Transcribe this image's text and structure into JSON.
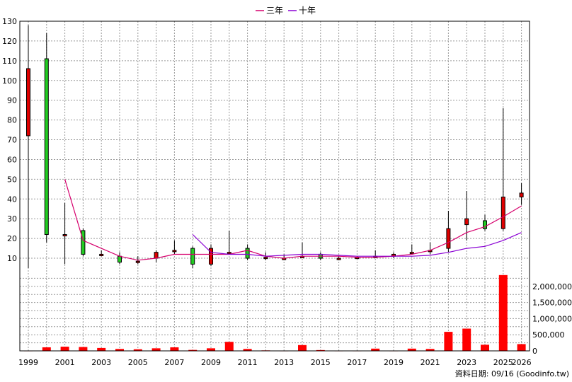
{
  "chart_data": {
    "type": "candlestick",
    "legend": {
      "position": "top-center",
      "entries": [
        {
          "name": "三年",
          "color": "#d6006d"
        },
        {
          "name": "十年",
          "color": "#8a00d4"
        }
      ]
    },
    "colors": {
      "up_candle": "#e00000",
      "down_candle": "#22cc22",
      "volume_bar": "#ff0000",
      "ma3": "#d6006d",
      "ma10": "#8a00d4"
    },
    "grid": true,
    "price_axis": {
      "position": "left",
      "ylim": [
        5,
        130
      ],
      "ticks": [
        10,
        20,
        30,
        40,
        50,
        60,
        70,
        80,
        90,
        100,
        110,
        120,
        130
      ]
    },
    "volume_axis": {
      "position": "right",
      "ylim": [
        0,
        2500000
      ],
      "ticks": [
        0,
        500000,
        1000000,
        1500000,
        2000000
      ],
      "tick_labels": [
        "0",
        "500,000",
        "1,000,000",
        "1,500,000",
        "2,000,000"
      ]
    },
    "x_tick_labels": [
      "1999",
      "2001",
      "2003",
      "2005",
      "2007",
      "2009",
      "2011",
      "2013",
      "2015",
      "2017",
      "2019",
      "2021",
      "2023",
      "2025",
      "2026"
    ],
    "candles": [
      {
        "year": 1999,
        "open": 72,
        "close": 106,
        "high": 128,
        "low": 5
      },
      {
        "year": 2000,
        "open": 111,
        "close": 22,
        "high": 124,
        "low": 18
      },
      {
        "year": 2001,
        "open": 22,
        "close": 22,
        "high": 38,
        "low": 7
      },
      {
        "year": 2002,
        "open": 24,
        "close": 12,
        "high": 25,
        "low": 11
      },
      {
        "year": 2003,
        "open": 12,
        "close": 12,
        "high": 14,
        "low": 11
      },
      {
        "year": 2004,
        "open": 11,
        "close": 8,
        "high": 13,
        "low": 7
      },
      {
        "year": 2005,
        "open": 8.5,
        "close": 8.5,
        "high": 11,
        "low": 7
      },
      {
        "year": 2006,
        "open": 10,
        "close": 13,
        "high": 14,
        "low": 8
      },
      {
        "year": 2007,
        "open": 14,
        "close": 14,
        "high": 19,
        "low": 12
      },
      {
        "year": 2008,
        "open": 15,
        "close": 7,
        "high": 16,
        "low": 5
      },
      {
        "year": 2009,
        "open": 7,
        "close": 15,
        "high": 17,
        "low": 6
      },
      {
        "year": 2010,
        "open": 13,
        "close": 13,
        "high": 24,
        "low": 12
      },
      {
        "year": 2011,
        "open": 15,
        "close": 10,
        "high": 17,
        "low": 9
      },
      {
        "year": 2012,
        "open": 10.5,
        "close": 10.5,
        "high": 13,
        "low": 9
      },
      {
        "year": 2013,
        "open": 10,
        "close": 10,
        "high": 12,
        "low": 9
      },
      {
        "year": 2014,
        "open": 11,
        "close": 11,
        "high": 18,
        "low": 10
      },
      {
        "year": 2015,
        "open": 12,
        "close": 10,
        "high": 13,
        "low": 9
      },
      {
        "year": 2016,
        "open": 10,
        "close": 10,
        "high": 11,
        "low": 9
      },
      {
        "year": 2017,
        "open": 10.5,
        "close": 10.5,
        "high": 11,
        "low": 10
      },
      {
        "year": 2018,
        "open": 11,
        "close": 11,
        "high": 14,
        "low": 10
      },
      {
        "year": 2019,
        "open": 11,
        "close": 12,
        "high": 13,
        "low": 10
      },
      {
        "year": 2020,
        "open": 13,
        "close": 13,
        "high": 17,
        "low": 12
      },
      {
        "year": 2021,
        "open": 14,
        "close": 14,
        "high": 18,
        "low": 12
      },
      {
        "year": 2022,
        "open": 15,
        "close": 25,
        "high": 34,
        "low": 13
      },
      {
        "year": 2023,
        "open": 27,
        "close": 30,
        "high": 44,
        "low": 19
      },
      {
        "year": 2024,
        "open": 29,
        "close": 25,
        "high": 32,
        "low": 24
      },
      {
        "year": 2025,
        "open": 25,
        "close": 41,
        "high": 86,
        "low": 24
      },
      {
        "year": 2026,
        "open": 41,
        "close": 43,
        "high": 48,
        "low": 37
      }
    ],
    "volume": [
      {
        "year": 1999,
        "value": 10000
      },
      {
        "year": 2000,
        "value": 110000
      },
      {
        "year": 2001,
        "value": 130000
      },
      {
        "year": 2002,
        "value": 120000
      },
      {
        "year": 2003,
        "value": 90000
      },
      {
        "year": 2004,
        "value": 60000
      },
      {
        "year": 2005,
        "value": 50000
      },
      {
        "year": 2006,
        "value": 80000
      },
      {
        "year": 2007,
        "value": 110000
      },
      {
        "year": 2008,
        "value": 30000
      },
      {
        "year": 2009,
        "value": 80000
      },
      {
        "year": 2010,
        "value": 280000
      },
      {
        "year": 2011,
        "value": 60000
      },
      {
        "year": 2012,
        "value": 15000
      },
      {
        "year": 2013,
        "value": 10000
      },
      {
        "year": 2014,
        "value": 180000
      },
      {
        "year": 2015,
        "value": 25000
      },
      {
        "year": 2016,
        "value": 10000
      },
      {
        "year": 2017,
        "value": 10000
      },
      {
        "year": 2018,
        "value": 70000
      },
      {
        "year": 2019,
        "value": 10000
      },
      {
        "year": 2020,
        "value": 70000
      },
      {
        "year": 2021,
        "value": 60000
      },
      {
        "year": 2022,
        "value": 590000
      },
      {
        "year": 2023,
        "value": 690000
      },
      {
        "year": 2024,
        "value": 190000
      },
      {
        "year": 2025,
        "value": 2350000
      },
      {
        "year": 2026,
        "value": 210000
      }
    ],
    "series": [
      {
        "name": "三年",
        "points": [
          [
            2001,
            50
          ],
          [
            2002,
            19
          ],
          [
            2003,
            15
          ],
          [
            2004,
            11
          ],
          [
            2005,
            9
          ],
          [
            2006,
            10
          ],
          [
            2007,
            12
          ],
          [
            2008,
            12
          ],
          [
            2009,
            12
          ],
          [
            2010,
            12
          ],
          [
            2011,
            14
          ],
          [
            2012,
            11
          ],
          [
            2013,
            10
          ],
          [
            2014,
            11
          ],
          [
            2015,
            11
          ],
          [
            2016,
            11
          ],
          [
            2017,
            10.5
          ],
          [
            2018,
            10.5
          ],
          [
            2019,
            11
          ],
          [
            2020,
            12
          ],
          [
            2021,
            14
          ],
          [
            2022,
            18
          ],
          [
            2023,
            23
          ],
          [
            2024,
            26
          ],
          [
            2025,
            31
          ],
          [
            2026,
            36.5
          ]
        ]
      },
      {
        "name": "十年",
        "points": [
          [
            2008,
            22
          ],
          [
            2009,
            13
          ],
          [
            2010,
            12
          ],
          [
            2011,
            12
          ],
          [
            2012,
            11
          ],
          [
            2013,
            11.5
          ],
          [
            2014,
            12
          ],
          [
            2015,
            12
          ],
          [
            2016,
            11.5
          ],
          [
            2017,
            11
          ],
          [
            2018,
            11
          ],
          [
            2019,
            11
          ],
          [
            2020,
            11
          ],
          [
            2021,
            11.5
          ],
          [
            2022,
            13
          ],
          [
            2023,
            15
          ],
          [
            2024,
            16
          ],
          [
            2025,
            19
          ],
          [
            2026,
            23
          ]
        ]
      }
    ]
  },
  "footer_text": "資料日期: 09/16 (Goodinfo.tw)"
}
